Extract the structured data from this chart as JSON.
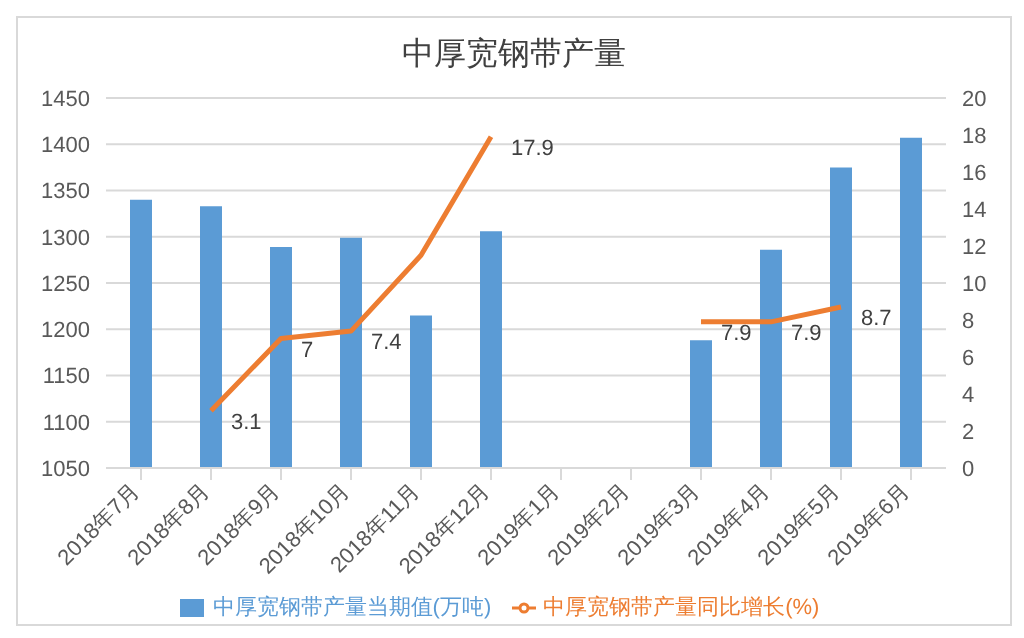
{
  "chart_data": {
    "type": "bar",
    "title": "中厚宽钢带产量",
    "categories": [
      "2018年7月",
      "2018年8月",
      "2018年9月",
      "2018年10月",
      "2018年11月",
      "2018年12月",
      "2019年1月",
      "2019年2月",
      "2019年3月",
      "2019年4月",
      "2019年5月",
      "2019年6月"
    ],
    "series": [
      {
        "name": "中厚宽钢带产量当期值(万吨)",
        "color": "#5b9bd5",
        "values": [
          1340,
          1333,
          1289,
          1299,
          1215,
          1306,
          null,
          null,
          1188,
          1286,
          1375,
          1407
        ]
      },
      {
        "name": "中厚宽钢带产量同比增长(%)",
        "type": "line",
        "axis": "y2",
        "color": "#ed7d31",
        "values": [
          null,
          3.1,
          7,
          7.4,
          11.5,
          17.9,
          null,
          null,
          7.9,
          7.9,
          8.7,
          null
        ],
        "value_labels": [
          null,
          "3.1",
          "7",
          "7.4",
          null,
          "17.9",
          null,
          null,
          "7.9",
          "7.9",
          "8.7",
          null
        ]
      }
    ],
    "ylim": [
      1050,
      1450
    ],
    "yticks": [
      1050,
      1100,
      1150,
      1200,
      1250,
      1300,
      1350,
      1400,
      1450
    ],
    "y2lim": [
      0,
      20
    ],
    "y2ticks": [
      0,
      2,
      4,
      6,
      8,
      10,
      12,
      14,
      16,
      18,
      20
    ],
    "grid": "y",
    "legend": "bottom",
    "marker": "none",
    "line_style": "solid"
  }
}
